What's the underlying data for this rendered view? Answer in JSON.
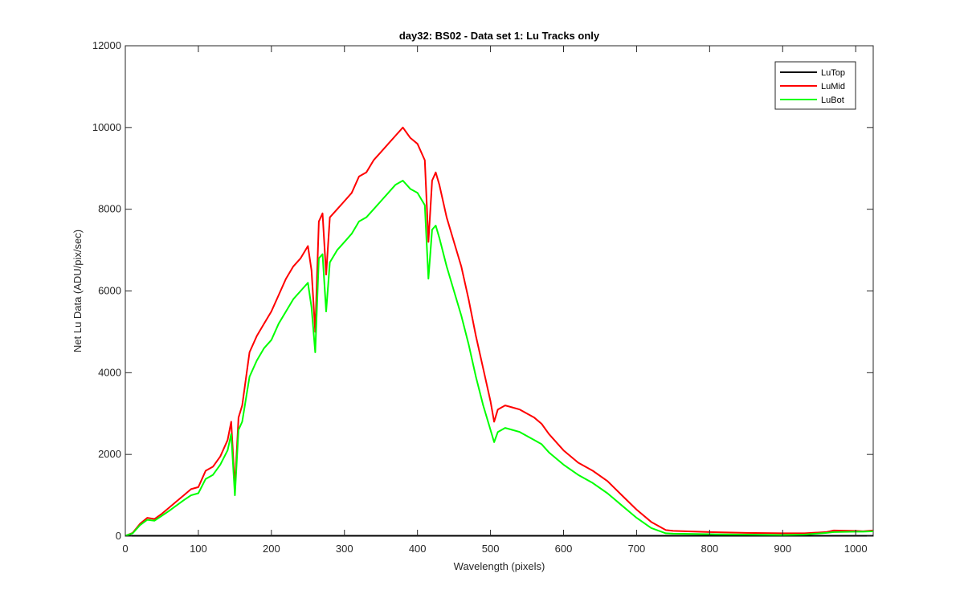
{
  "chart_data": {
    "type": "line",
    "title": "day32: BS02 - Data set 1: Lu Tracks only",
    "xlabel": "Wavelength (pixels)",
    "ylabel": "Net Lu Data (ADU/pix/sec)",
    "xlim": [
      0,
      1024
    ],
    "ylim": [
      0,
      12000
    ],
    "xticks": [
      0,
      100,
      200,
      300,
      400,
      500,
      600,
      700,
      800,
      900,
      1000
    ],
    "yticks": [
      0,
      2000,
      4000,
      6000,
      8000,
      10000,
      12000
    ],
    "grid": false,
    "legend_position": "top-right",
    "series": [
      {
        "name": "LuTop",
        "color": "#000000",
        "x": [
          0,
          100,
          200,
          300,
          400,
          500,
          600,
          700,
          800,
          900,
          1024
        ],
        "y": [
          10,
          10,
          10,
          10,
          10,
          10,
          10,
          10,
          10,
          10,
          10
        ]
      },
      {
        "name": "LuMid",
        "color": "#ff0000",
        "x": [
          0,
          10,
          20,
          30,
          40,
          50,
          60,
          70,
          80,
          90,
          100,
          110,
          120,
          130,
          140,
          145,
          150,
          155,
          160,
          170,
          180,
          190,
          200,
          210,
          220,
          230,
          240,
          250,
          255,
          260,
          265,
          270,
          275,
          280,
          290,
          300,
          310,
          320,
          330,
          340,
          350,
          360,
          370,
          380,
          390,
          400,
          410,
          415,
          420,
          425,
          430,
          440,
          450,
          460,
          470,
          480,
          490,
          500,
          505,
          510,
          520,
          530,
          540,
          550,
          560,
          570,
          580,
          600,
          620,
          640,
          660,
          680,
          700,
          720,
          740,
          750,
          800,
          850,
          900,
          930,
          960,
          970,
          1000,
          1010,
          1024
        ],
        "y": [
          10,
          80,
          300,
          450,
          420,
          550,
          700,
          850,
          1000,
          1150,
          1200,
          1600,
          1700,
          1950,
          2350,
          2800,
          1200,
          2900,
          3200,
          4500,
          4900,
          5200,
          5500,
          5900,
          6300,
          6600,
          6800,
          7100,
          6500,
          5000,
          7700,
          7900,
          6400,
          7800,
          8000,
          8200,
          8400,
          8800,
          8900,
          9200,
          9400,
          9600,
          9800,
          10000,
          9750,
          9600,
          9200,
          7200,
          8700,
          8900,
          8600,
          7800,
          7200,
          6600,
          5800,
          4900,
          4100,
          3300,
          2800,
          3100,
          3200,
          3150,
          3100,
          3000,
          2900,
          2750,
          2500,
          2100,
          1800,
          1600,
          1350,
          1000,
          650,
          350,
          150,
          130,
          100,
          80,
          70,
          70,
          100,
          140,
          130,
          120,
          140
        ]
      },
      {
        "name": "LuBot",
        "color": "#00ff00",
        "x": [
          0,
          10,
          20,
          30,
          40,
          50,
          60,
          70,
          80,
          90,
          100,
          110,
          120,
          130,
          140,
          145,
          150,
          155,
          160,
          170,
          180,
          190,
          200,
          210,
          220,
          230,
          240,
          250,
          255,
          260,
          265,
          270,
          275,
          280,
          290,
          300,
          310,
          320,
          330,
          340,
          350,
          360,
          370,
          380,
          390,
          400,
          410,
          415,
          420,
          425,
          430,
          440,
          450,
          460,
          470,
          480,
          490,
          500,
          505,
          510,
          520,
          530,
          540,
          550,
          560,
          570,
          580,
          600,
          620,
          640,
          660,
          680,
          700,
          720,
          740,
          750,
          800,
          850,
          900,
          930,
          960,
          970,
          1000,
          1010,
          1024
        ],
        "y": [
          10,
          70,
          270,
          400,
          380,
          500,
          620,
          750,
          880,
          1000,
          1050,
          1400,
          1500,
          1750,
          2100,
          2500,
          1000,
          2600,
          2800,
          3900,
          4300,
          4600,
          4800,
          5200,
          5500,
          5800,
          6000,
          6200,
          5600,
          4500,
          6800,
          6900,
          5500,
          6700,
          7000,
          7200,
          7400,
          7700,
          7800,
          8000,
          8200,
          8400,
          8600,
          8700,
          8500,
          8400,
          8100,
          6300,
          7500,
          7600,
          7300,
          6600,
          6000,
          5400,
          4700,
          3900,
          3200,
          2600,
          2300,
          2550,
          2650,
          2600,
          2550,
          2450,
          2350,
          2250,
          2050,
          1750,
          1500,
          1300,
          1050,
          750,
          450,
          200,
          70,
          60,
          50,
          40,
          30,
          40,
          80,
          100,
          110,
          110,
          120
        ]
      }
    ]
  }
}
